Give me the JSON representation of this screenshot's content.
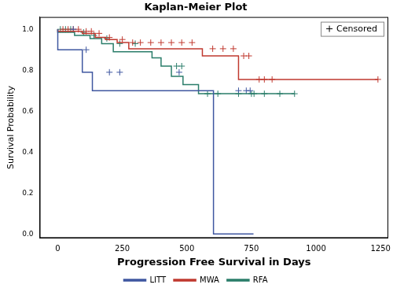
{
  "chart_data": {
    "type": "line",
    "title": "Kaplan-Meier Plot",
    "x_label": "Progression Free Survival in Days",
    "y_label": "Survival Probability",
    "censored_label": "Censored",
    "line_style": "step",
    "xlim": [
      -70,
      1280
    ],
    "xticks": [
      0,
      250,
      500,
      750,
      1000,
      1250
    ],
    "ylim": [
      -0.02,
      1.06
    ],
    "yticks": [
      {
        "value": 0,
        "label": "0.0"
      },
      0.2,
      0.4,
      0.6,
      0.8,
      {
        "value": 1,
        "label": "1.0"
      }
    ],
    "grid": false,
    "legend": "bottom",
    "series": [
      {
        "name": "LITT",
        "color": "#3f57a0",
        "x": [
          0,
          95,
          134,
          603,
          758
        ],
        "values": [
          1,
          0.9,
          0.79,
          0.7,
          0
        ],
        "censored_x": [
          60,
          110,
          200,
          240,
          470,
          700,
          730,
          745
        ],
        "censored_values": [
          1,
          0.9,
          0.79,
          0.79,
          0.79,
          0.7,
          0.7,
          0.7
        ]
      },
      {
        "name": "MWA",
        "color": "#c0392f",
        "x": [
          0,
          95,
          145,
          185,
          230,
          275,
          560,
          700,
          760,
          1240
        ],
        "values": [
          1,
          0.99,
          0.98,
          0.96,
          0.95,
          0.935,
          0.905,
          0.87,
          0.755,
          0.755
        ],
        "censored_x": [
          20,
          40,
          60,
          80,
          110,
          130,
          160,
          200,
          250,
          290,
          320,
          360,
          400,
          440,
          480,
          520,
          600,
          640,
          680,
          720,
          740,
          780,
          800,
          830,
          1240
        ],
        "censored_values": [
          1,
          1,
          1,
          1,
          0.99,
          0.99,
          0.98,
          0.96,
          0.95,
          0.935,
          0.935,
          0.935,
          0.935,
          0.935,
          0.935,
          0.935,
          0.905,
          0.905,
          0.905,
          0.87,
          0.87,
          0.755,
          0.755,
          0.755,
          0.755
        ]
      },
      {
        "name": "RFA",
        "color": "#2a7d6a",
        "x": [
          0,
          65,
          125,
          170,
          215,
          365,
          400,
          440,
          485,
          545,
          567,
          917
        ],
        "values": [
          1,
          0.985,
          0.97,
          0.955,
          0.93,
          0.89,
          0.86,
          0.82,
          0.77,
          0.73,
          0.685,
          0.685
        ],
        "censored_x": [
          10,
          30,
          50,
          100,
          140,
          190,
          240,
          300,
          460,
          480,
          580,
          620,
          700,
          750,
          760,
          800,
          860,
          917
        ],
        "censored_values": [
          1,
          1,
          1,
          0.985,
          0.97,
          0.955,
          0.93,
          0.93,
          0.82,
          0.82,
          0.685,
          0.685,
          0.685,
          0.685,
          0.685,
          0.685,
          0.685,
          0.685
        ]
      }
    ]
  }
}
